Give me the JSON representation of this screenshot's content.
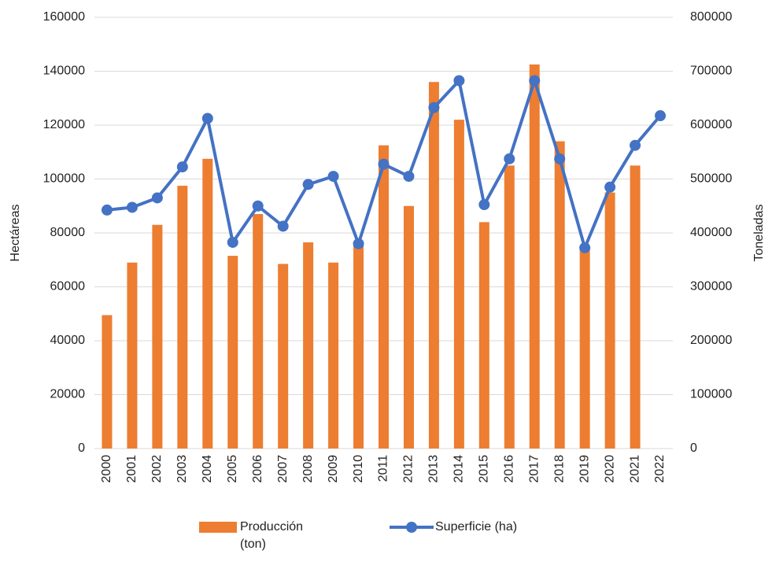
{
  "chart_data": {
    "type": "bar-line",
    "y_label": "Hectáreas",
    "y2_label": "Toneladas",
    "categories": [
      "2000",
      "2001",
      "2002",
      "2003",
      "2004",
      "2005",
      "2006",
      "2007",
      "2008",
      "2009",
      "2010",
      "2011",
      "2012",
      "2013",
      "2014",
      "2015",
      "2016",
      "2017",
      "2018",
      "2019",
      "2020",
      "2021",
      "2022"
    ],
    "series": [
      {
        "name": "Producción (ton)",
        "type": "bar",
        "axis": "y2",
        "color": "#ED7D31",
        "values": [
          247500,
          345000,
          415000,
          487500,
          537500,
          357500,
          435000,
          342500,
          382500,
          345000,
          380000,
          562500,
          450000,
          680000,
          610000,
          420000,
          525000,
          712500,
          570000,
          370000,
          475000,
          525000,
          null
        ]
      },
      {
        "name": "Superficie (ha)",
        "type": "line",
        "axis": "y",
        "color": "#4472C4",
        "values": [
          88500,
          89500,
          93000,
          104500,
          122500,
          76500,
          90000,
          82500,
          98000,
          101000,
          76000,
          105500,
          101000,
          126500,
          136500,
          90500,
          107500,
          136500,
          107500,
          74500,
          97000,
          112500,
          123500
        ]
      }
    ],
    "ylim": [
      0,
      160000
    ],
    "yticks": [
      0,
      20000,
      40000,
      60000,
      80000,
      100000,
      120000,
      140000,
      160000
    ],
    "y2lim": [
      0,
      800000
    ],
    "y2ticks": [
      0,
      100000,
      200000,
      300000,
      400000,
      500000,
      600000,
      700000,
      800000
    ],
    "grid": true,
    "legend": "bottom"
  }
}
